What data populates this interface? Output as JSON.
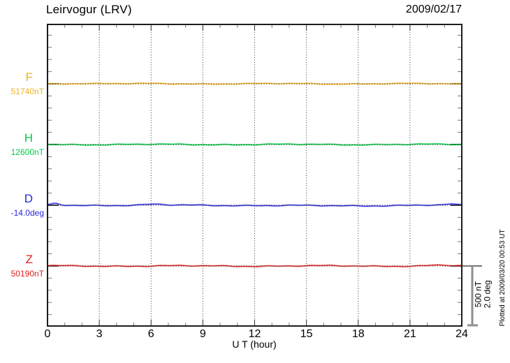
{
  "header": {
    "station_title": "Leirvogur (LRV)",
    "date": "2009/02/17"
  },
  "chart_data": {
    "type": "line",
    "title": "Leirvogur (LRV)",
    "date": "2009/02/17",
    "xlabel": "U T (hour)",
    "x_range": [
      0,
      24
    ],
    "x_ticks": [
      0,
      3,
      6,
      9,
      12,
      15,
      18,
      21,
      24
    ],
    "x_minor_tick_hours": 1,
    "grid": {
      "vertical_dotted_every_hours": 3,
      "horizontal_dotted_at_each_series_baseline": true
    },
    "series": [
      {
        "name": "F",
        "baseline_label": "51740nT",
        "value": 51740,
        "unit": "nT",
        "color": "#F2B122",
        "shape": "nearly constant at baseline all 24 h, fluctuations under one minor division"
      },
      {
        "name": "H",
        "baseline_label": "12600nT",
        "value": 12600,
        "unit": "nT",
        "color": "#00CC44",
        "shape": "nearly constant at baseline all 24 h, tiny ripples"
      },
      {
        "name": "D",
        "baseline_label": "-14.0deg",
        "value": -14.0,
        "unit": "deg",
        "color": "#2828DF",
        "shape": "nearly constant; small positive bumps near 00:30 and 06:00, slight dip 12-20 h, ripples near 23-24 h"
      },
      {
        "name": "Z",
        "baseline_label": "50190nT",
        "value": 50190,
        "unit": "nT",
        "color": "#DF2020",
        "shape": "nearly constant at baseline all 24 h, slight rise near 23 h"
      }
    ],
    "scale_bar": {
      "labels": [
        "500 nT",
        "2.0 deg"
      ]
    },
    "footer": "Plotted at 2009/03/20 00:53 UT"
  }
}
